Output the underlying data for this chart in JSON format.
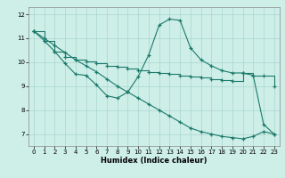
{
  "xlabel": "Humidex (Indice chaleur)",
  "bg_color": "#ceeee8",
  "line_color": "#1a7a6a",
  "xlim": [
    -0.5,
    23.5
  ],
  "ylim": [
    6.5,
    12.3
  ],
  "yticks": [
    7,
    8,
    9,
    10,
    11,
    12
  ],
  "xticks": [
    0,
    1,
    2,
    3,
    4,
    5,
    6,
    7,
    8,
    9,
    10,
    11,
    12,
    13,
    14,
    15,
    16,
    17,
    18,
    19,
    20,
    21,
    22,
    23
  ],
  "line_zigzag_x": [
    0,
    1,
    2,
    3,
    4,
    5,
    6,
    7,
    8,
    9,
    10,
    11,
    12,
    13,
    14,
    15,
    16,
    17,
    18,
    19,
    20,
    21,
    22,
    23
  ],
  "line_zigzag_y": [
    11.3,
    10.9,
    10.45,
    9.95,
    9.5,
    9.45,
    9.05,
    8.6,
    8.5,
    8.75,
    9.4,
    10.3,
    11.55,
    11.8,
    11.75,
    10.6,
    10.1,
    9.85,
    9.65,
    9.55,
    9.55,
    9.45,
    7.4,
    7.0
  ],
  "line_diag_x": [
    0,
    1,
    2,
    3,
    4,
    5,
    6,
    7,
    8,
    9,
    10,
    11,
    12,
    13,
    14,
    15,
    16,
    17,
    18,
    19,
    20,
    21,
    22,
    23
  ],
  "line_diag_y": [
    11.3,
    11.0,
    10.7,
    10.4,
    10.1,
    9.85,
    9.6,
    9.3,
    9.0,
    8.75,
    8.5,
    8.25,
    8.0,
    7.75,
    7.5,
    7.25,
    7.1,
    7.0,
    6.9,
    6.85,
    6.8,
    6.9,
    7.1,
    7.0
  ],
  "line_step_x": [
    0,
    1,
    2,
    3,
    4,
    5,
    6,
    7,
    8,
    9,
    10,
    11,
    12,
    13,
    14,
    15,
    16,
    17,
    18,
    19,
    20,
    21,
    22,
    23
  ],
  "line_step_y": [
    11.3,
    10.9,
    10.45,
    10.2,
    10.1,
    10.05,
    9.95,
    9.85,
    9.8,
    9.75,
    9.65,
    9.6,
    9.55,
    9.5,
    9.45,
    9.4,
    9.35,
    9.3,
    9.25,
    9.2,
    9.55,
    9.45,
    9.45,
    9.0
  ]
}
